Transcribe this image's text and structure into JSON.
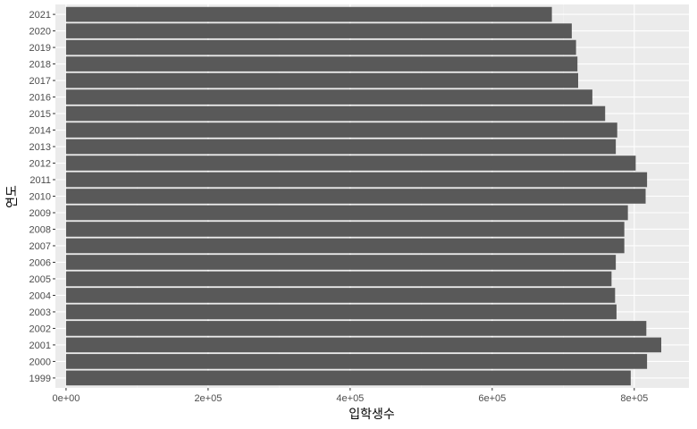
{
  "chart_data": {
    "type": "bar",
    "orientation": "horizontal",
    "categories": [
      "1999",
      "2000",
      "2001",
      "2002",
      "2003",
      "2004",
      "2005",
      "2006",
      "2007",
      "2008",
      "2009",
      "2010",
      "2011",
      "2012",
      "2013",
      "2014",
      "2015",
      "2016",
      "2017",
      "2018",
      "2019",
      "2020",
      "2021"
    ],
    "values": [
      795000,
      818000,
      838000,
      817000,
      775000,
      773000,
      768000,
      774000,
      786000,
      786000,
      791000,
      816000,
      818000,
      802000,
      774000,
      776000,
      759000,
      741000,
      721000,
      720000,
      718000,
      712000,
      684000
    ],
    "xlabel": "입학생수",
    "ylabel": "연도",
    "xlim": [
      -15000,
      877000
    ],
    "xticks": [
      0,
      200000,
      400000,
      600000,
      800000
    ],
    "xtick_labels": [
      "0e+00",
      "2e+05",
      "4e+05",
      "6e+05",
      "8e+05"
    ],
    "grid": true,
    "legend": "none",
    "colors": {
      "bar": "#595959",
      "panel_background": "#ebebeb",
      "grid_major": "#ffffff",
      "grid_minor": "#f4f4f4",
      "tick_text": "#4d4d4d",
      "title_text": "#000000"
    }
  }
}
